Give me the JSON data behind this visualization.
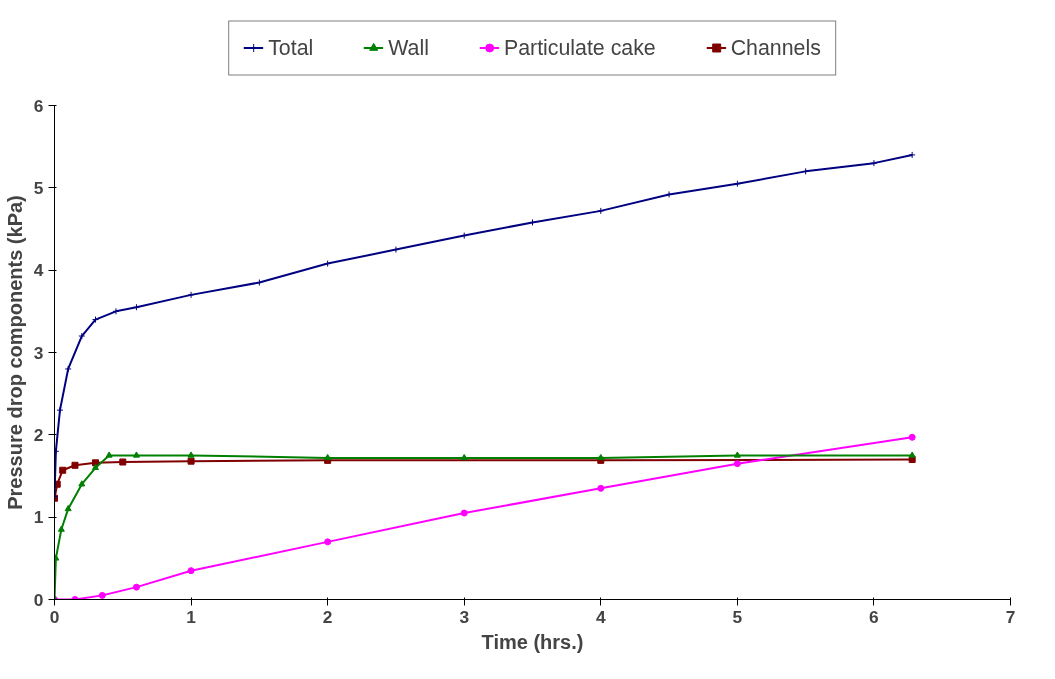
{
  "chart_data": {
    "type": "line",
    "xlabel": "Time (hrs.)",
    "ylabel": "Pressure drop components (kPa)",
    "xlim": [
      0,
      7
    ],
    "ylim": [
      0,
      6
    ],
    "xticks": [
      0,
      1,
      2,
      3,
      4,
      5,
      6,
      7
    ],
    "yticks": [
      0,
      1,
      2,
      3,
      4,
      5,
      6
    ],
    "grid": false,
    "legend": "top",
    "series": [
      {
        "name": "Total",
        "color": "#000080",
        "marker": "cross",
        "x": [
          0,
          0.01,
          0.04,
          0.1,
          0.2,
          0.3,
          0.45,
          0.6,
          1,
          1.5,
          2,
          2.5,
          3,
          3.5,
          4,
          4.5,
          5,
          5.5,
          6,
          6.28
        ],
        "values": [
          1.25,
          1.8,
          2.3,
          2.8,
          3.2,
          3.4,
          3.5,
          3.55,
          3.7,
          3.85,
          4.08,
          4.25,
          4.42,
          4.58,
          4.72,
          4.92,
          5.05,
          5.2,
          5.3,
          5.4
        ]
      },
      {
        "name": "Wall",
        "color": "#008000",
        "marker": "triangle",
        "x": [
          0,
          0.01,
          0.05,
          0.1,
          0.2,
          0.3,
          0.4,
          0.6,
          1,
          2,
          3,
          4,
          5,
          6.28
        ],
        "values": [
          0,
          0.5,
          0.85,
          1.1,
          1.4,
          1.6,
          1.75,
          1.75,
          1.75,
          1.72,
          1.72,
          1.72,
          1.75,
          1.75
        ]
      },
      {
        "name": "Particulate cake",
        "color": "#ff00ff",
        "marker": "circle",
        "x": [
          0,
          0.15,
          0.35,
          0.6,
          1,
          2,
          3,
          4,
          5,
          6.28
        ],
        "values": [
          0,
          0,
          0.05,
          0.15,
          0.35,
          0.7,
          1.05,
          1.35,
          1.65,
          1.97
        ]
      },
      {
        "name": "Channels",
        "color": "#800000",
        "marker": "square",
        "x": [
          0,
          0.02,
          0.06,
          0.15,
          0.3,
          0.5,
          1,
          2,
          4,
          6.28
        ],
        "values": [
          1.23,
          1.4,
          1.57,
          1.63,
          1.66,
          1.67,
          1.68,
          1.69,
          1.69,
          1.7
        ]
      }
    ]
  }
}
